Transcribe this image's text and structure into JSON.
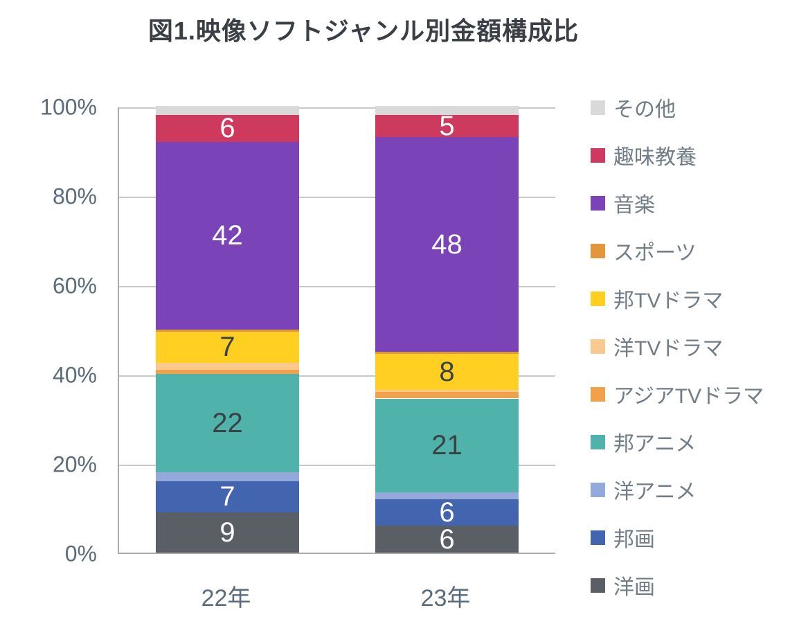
{
  "title": "図1.映像ソフトジャンル別金額構成比",
  "chart_data": {
    "type": "bar",
    "subtype": "100%-stacked-column",
    "title": "図1.映像ソフトジャンル別金額構成比",
    "categories": [
      "22年",
      "23年"
    ],
    "y_ticks": [
      "100%",
      "80%",
      "60%",
      "40%",
      "20%",
      "0%"
    ],
    "ylim": [
      0,
      100
    ],
    "grid": true,
    "legend_position": "right",
    "axis_text_color": "#5a6b7b",
    "legend_text_color": "#707d87",
    "series": [
      {
        "name": "洋画",
        "color": "#5a5f66",
        "values": [
          9,
          6
        ],
        "labels": [
          "9",
          "6"
        ],
        "label_color": "#ffffff"
      },
      {
        "name": "邦画",
        "color": "#4365af",
        "values": [
          7,
          6
        ],
        "labels": [
          "7",
          "6"
        ],
        "label_color": "#ffffff"
      },
      {
        "name": "洋アニメ",
        "color": "#93a9da",
        "values": [
          2,
          1.5
        ],
        "labels": [
          "",
          ""
        ],
        "label_color": "#ffffff"
      },
      {
        "name": "邦アニメ",
        "color": "#4fb3ab",
        "values": [
          22,
          21
        ],
        "labels": [
          "22",
          "21"
        ],
        "label_color": "#3a4147"
      },
      {
        "name": "アジアTVドラマ",
        "color": "#f0a14a",
        "values": [
          1,
          1.5
        ],
        "labels": [
          "",
          ""
        ],
        "label_color": "#3a4147"
      },
      {
        "name": "洋TVドラマ",
        "color": "#f9c98e",
        "values": [
          1.5,
          0.5
        ],
        "labels": [
          "",
          ""
        ],
        "label_color": "#3a4147"
      },
      {
        "name": "邦TVドラマ",
        "color": "#ffd021",
        "values": [
          7,
          8
        ],
        "labels": [
          "7",
          "8"
        ],
        "label_color": "#3a4147"
      },
      {
        "name": "スポーツ",
        "color": "#e2973b",
        "values": [
          0.5,
          0.5
        ],
        "labels": [
          "",
          ""
        ],
        "label_color": "#3a4147"
      },
      {
        "name": "音楽",
        "color": "#7a44b8",
        "values": [
          42,
          48
        ],
        "labels": [
          "42",
          "48"
        ],
        "label_color": "#ffffff"
      },
      {
        "name": "趣味教養",
        "color": "#ce3a5e",
        "values": [
          6,
          5
        ],
        "labels": [
          "6",
          "5"
        ],
        "label_color": "#ffffff"
      },
      {
        "name": "その他",
        "color": "#d9d9d9",
        "values": [
          2,
          2
        ],
        "labels": [
          "",
          ""
        ],
        "label_color": "#3a4147"
      }
    ]
  }
}
